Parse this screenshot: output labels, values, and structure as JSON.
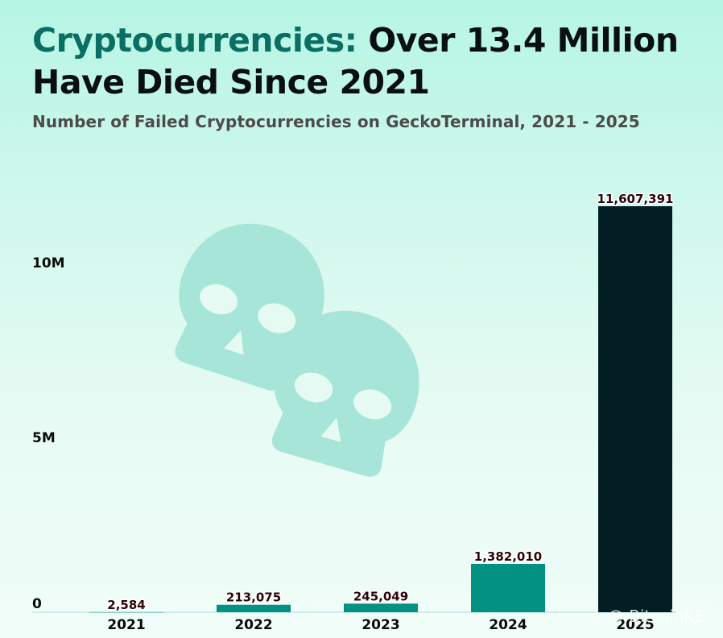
{
  "header": {
    "title_accent": "Cryptocurrencies:",
    "title_rest": "Over 13.4 Million Have Died Since 2021",
    "subtitle": "Number of Failed Cryptocurrencies on GeckoTerminal, 2021 - 2025"
  },
  "watermark": "◇ @ BitcoinKE",
  "colors": {
    "bar": "#039182",
    "bar_highlight": "#021e24",
    "value_label": "#2b0508",
    "axis_text": "#0a0a0a",
    "skull": "#a6e5d7"
  },
  "chart_data": {
    "type": "bar",
    "title": "Cryptocurrencies: Over 13.4 Million Have Died Since 2021",
    "subtitle": "Number of Failed Cryptocurrencies on GeckoTerminal, 2021 - 2025",
    "xlabel": "",
    "ylabel": "",
    "categories": [
      "2021",
      "2022",
      "2023",
      "2024",
      "2025"
    ],
    "values": [
      2584,
      213075,
      245049,
      1382010,
      11607391
    ],
    "value_labels": [
      "2,584",
      "213,075",
      "245,049",
      "1,382,010",
      "11,607,391"
    ],
    "highlight_index": 4,
    "ylim": [
      0,
      12500000
    ],
    "yticks": [
      0,
      5000000,
      10000000
    ],
    "ytick_labels": [
      "0",
      "5M",
      "10M"
    ],
    "grid": false,
    "legend": "none"
  }
}
